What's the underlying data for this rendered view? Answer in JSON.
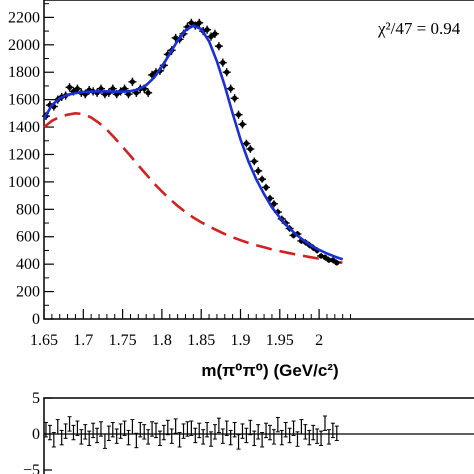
{
  "chart_data": [
    {
      "type": "scatter",
      "title": "",
      "xlabel": "m(π⁰π⁰) (GeV/c²)",
      "ylabel": "",
      "xlim": [
        1.65,
        2.03
      ],
      "ylim": [
        0,
        2300
      ],
      "x_ticks": [
        "1.65",
        "1.7",
        "1.75",
        "1.8",
        "1.85",
        "1.9",
        "1.95",
        "2"
      ],
      "y_ticks": [
        "0",
        "200",
        "400",
        "600",
        "800",
        "1000",
        "1200",
        "1400",
        "1600",
        "1800",
        "2000",
        "2200"
      ],
      "annotation": "χ²/47 = 0.94",
      "grid": false,
      "series": [
        {
          "kind": "data-points-with-errors",
          "color": "#000000",
          "x": [
            1.6525,
            1.6575,
            1.6625,
            1.6675,
            1.6725,
            1.6775,
            1.6825,
            1.6875,
            1.6925,
            1.6975,
            1.7025,
            1.7075,
            1.7125,
            1.7175,
            1.7225,
            1.7275,
            1.7325,
            1.7375,
            1.7425,
            1.7475,
            1.7525,
            1.7575,
            1.7625,
            1.7675,
            1.7725,
            1.7775,
            1.7825,
            1.7875,
            1.7925,
            1.7975,
            1.8025,
            1.8075,
            1.8125,
            1.8175,
            1.8225,
            1.8275,
            1.8325,
            1.8375,
            1.8425,
            1.8475,
            1.8525,
            1.8575,
            1.8625,
            1.8675,
            1.8725,
            1.8775,
            1.8825,
            1.8875,
            1.8925,
            1.8975,
            1.9025,
            1.9075,
            1.9125,
            1.9175,
            1.9225,
            1.9275,
            1.9325,
            1.9375,
            1.9425,
            1.9475,
            1.9525,
            1.9575,
            1.9625,
            1.9675,
            1.9725,
            1.9775,
            1.9825,
            1.9875,
            1.9925,
            1.9975,
            2.0025,
            2.0075,
            2.0125,
            2.0175,
            2.0225
          ],
          "y": [
            1480,
            1560,
            1550,
            1600,
            1620,
            1630,
            1690,
            1660,
            1680,
            1650,
            1640,
            1670,
            1660,
            1650,
            1680,
            1640,
            1650,
            1680,
            1640,
            1660,
            1680,
            1640,
            1730,
            1650,
            1680,
            1680,
            1650,
            1780,
            1800,
            1810,
            1850,
            1930,
            1960,
            2050,
            2040,
            2080,
            2130,
            2160,
            2140,
            2160,
            2100,
            2110,
            2060,
            2080,
            1990,
            1870,
            1800,
            1680,
            1610,
            1490,
            1420,
            1280,
            1240,
            1150,
            1080,
            1020,
            960,
            880,
            840,
            780,
            730,
            700,
            660,
            610,
            620,
            570,
            560,
            540,
            520,
            500,
            460,
            450,
            430,
            430,
            410
          ],
          "yerr": [
            28,
            30,
            30,
            30,
            30,
            30,
            30,
            30,
            30,
            30,
            30,
            30,
            30,
            30,
            30,
            30,
            30,
            30,
            30,
            30,
            30,
            30,
            30,
            30,
            30,
            30,
            30,
            30,
            30,
            30,
            30,
            30,
            30,
            30,
            30,
            30,
            30,
            30,
            30,
            30,
            30,
            30,
            30,
            30,
            30,
            30,
            30,
            30,
            30,
            30,
            30,
            28,
            28,
            28,
            28,
            26,
            26,
            26,
            26,
            24,
            24,
            24,
            24,
            22,
            22,
            22,
            22,
            22,
            22,
            22,
            20,
            20,
            20,
            20,
            20
          ]
        },
        {
          "kind": "total-fit-line",
          "color": "#1a2fd6",
          "x": [
            1.65,
            1.66,
            1.67,
            1.68,
            1.69,
            1.7,
            1.71,
            1.72,
            1.73,
            1.74,
            1.75,
            1.76,
            1.77,
            1.78,
            1.79,
            1.8,
            1.81,
            1.82,
            1.83,
            1.84,
            1.85,
            1.86,
            1.87,
            1.88,
            1.89,
            1.9,
            1.91,
            1.92,
            1.93,
            1.94,
            1.95,
            1.96,
            1.97,
            1.98,
            1.99,
            2.0,
            2.01,
            2.02,
            2.03
          ],
          "y": [
            1460,
            1560,
            1610,
            1635,
            1648,
            1655,
            1658,
            1660,
            1660,
            1658,
            1658,
            1662,
            1675,
            1705,
            1760,
            1840,
            1935,
            2030,
            2105,
            2140,
            2115,
            2025,
            1880,
            1700,
            1500,
            1310,
            1150,
            1020,
            910,
            815,
            740,
            675,
            620,
            575,
            535,
            505,
            478,
            455,
            435
          ]
        },
        {
          "kind": "background-dashed-line",
          "color": "#d42020",
          "x": [
            1.65,
            1.66,
            1.67,
            1.68,
            1.69,
            1.7,
            1.71,
            1.72,
            1.73,
            1.74,
            1.75,
            1.76,
            1.77,
            1.78,
            1.79,
            1.8,
            1.81,
            1.82,
            1.83,
            1.84,
            1.85,
            1.86,
            1.87,
            1.88,
            1.89,
            1.9,
            1.91,
            1.92,
            1.93,
            1.94,
            1.95,
            1.96,
            1.97,
            1.98,
            1.99,
            2.0,
            2.01,
            2.02,
            2.03
          ],
          "y": [
            1400,
            1445,
            1475,
            1490,
            1500,
            1495,
            1470,
            1430,
            1380,
            1320,
            1255,
            1190,
            1120,
            1055,
            990,
            930,
            875,
            825,
            780,
            740,
            705,
            675,
            647,
            620,
            597,
            575,
            555,
            538,
            523,
            508,
            495,
            483,
            471,
            460,
            450,
            440,
            430,
            420,
            410
          ]
        }
      ]
    },
    {
      "type": "scatter",
      "title": "",
      "xlabel": "",
      "ylabel": "",
      "ylim": [
        -5,
        5
      ],
      "y_ticks": [
        "5",
        "0",
        "−5"
      ],
      "grid": false,
      "zero_line": true,
      "series": [
        {
          "kind": "pulls",
          "color": "#000000",
          "x": [
            1.6525,
            1.6575,
            1.6625,
            1.6675,
            1.6725,
            1.6775,
            1.6825,
            1.6875,
            1.6925,
            1.6975,
            1.7025,
            1.7075,
            1.7125,
            1.7175,
            1.7225,
            1.7275,
            1.7325,
            1.7375,
            1.7425,
            1.7475,
            1.7525,
            1.7575,
            1.7625,
            1.7675,
            1.7725,
            1.7775,
            1.7825,
            1.7875,
            1.7925,
            1.7975,
            1.8025,
            1.8075,
            1.8125,
            1.8175,
            1.8225,
            1.8275,
            1.8325,
            1.8375,
            1.8425,
            1.8475,
            1.8525,
            1.8575,
            1.8625,
            1.8675,
            1.8725,
            1.8775,
            1.8825,
            1.8875,
            1.8925,
            1.8975,
            1.9025,
            1.9075,
            1.9125,
            1.9175,
            1.9225,
            1.9275,
            1.9325,
            1.9375,
            1.9425,
            1.9475,
            1.9525,
            1.9575,
            1.9625,
            1.9675,
            1.9725,
            1.9775,
            1.9825,
            1.9875,
            1.9925,
            1.9975,
            2.0025,
            2.0075,
            2.0125,
            2.0175,
            2.0225
          ],
          "y": [
            0.6,
            0.2,
            -0.8,
            1.0,
            -0.5,
            0.4,
            1.4,
            0.2,
            0.8,
            -0.4,
            0.3,
            -0.6,
            0.5,
            -0.2,
            0.7,
            -1.0,
            0.1,
            0.6,
            -0.3,
            0.4,
            0.8,
            -0.5,
            1.0,
            -0.9,
            0.6,
            0.3,
            -0.4,
            0.7,
            0.5,
            -0.6,
            0.2,
            0.9,
            -0.3,
            1.1,
            -0.8,
            0.4,
            0.7,
            0.8,
            -0.2,
            0.5,
            -0.4,
            0.6,
            -0.7,
            0.3,
            1.2,
            -0.3,
            0.8,
            -0.5,
            0.6,
            -1.1,
            0.4,
            -0.2,
            0.9,
            -0.6,
            0.3,
            -0.8,
            0.5,
            0.2,
            -0.4,
            1.3,
            -0.5,
            0.6,
            -0.2,
            0.8,
            -0.7,
            1.0,
            0.3,
            -0.5,
            0.2,
            -0.3,
            -0.6,
            1.5,
            -0.4,
            0.5,
            0.1
          ]
        }
      ]
    }
  ]
}
